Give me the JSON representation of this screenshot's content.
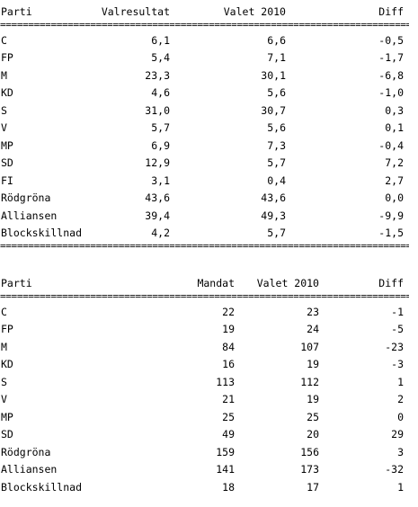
{
  "rule_text": "================================================================================",
  "table1": {
    "headers": [
      "Parti",
      "Valresultat",
      "Valet 2010",
      "Diff"
    ],
    "rows": [
      [
        "C",
        "6,1",
        "6,6",
        "-0,5"
      ],
      [
        "FP",
        "5,4",
        "7,1",
        "-1,7"
      ],
      [
        "M",
        "23,3",
        "30,1",
        "-6,8"
      ],
      [
        "KD",
        "4,6",
        "5,6",
        "-1,0"
      ],
      [
        "S",
        "31,0",
        "30,7",
        "0,3"
      ],
      [
        "V",
        "5,7",
        "5,6",
        "0,1"
      ],
      [
        "MP",
        "6,9",
        "7,3",
        "-0,4"
      ],
      [
        "SD",
        "12,9",
        "5,7",
        "7,2"
      ],
      [
        "FI",
        "3,1",
        "0,4",
        "2,7"
      ],
      [
        "Rödgröna",
        "43,6",
        "43,6",
        "0,0"
      ],
      [
        "Alliansen",
        "39,4",
        "49,3",
        "-9,9"
      ],
      [
        "Blockskillnad",
        "4,2",
        "5,7",
        "-1,5"
      ]
    ]
  },
  "table2": {
    "headers": [
      "Parti",
      "Mandat",
      "Valet 2010",
      "Diff"
    ],
    "rows": [
      [
        "C",
        "22",
        "23",
        "-1"
      ],
      [
        "FP",
        "19",
        "24",
        "-5"
      ],
      [
        "M",
        "84",
        "107",
        "-23"
      ],
      [
        "KD",
        "16",
        "19",
        "-3"
      ],
      [
        "S",
        "113",
        "112",
        "1"
      ],
      [
        "V",
        "21",
        "19",
        "2"
      ],
      [
        "MP",
        "25",
        "25",
        "0"
      ],
      [
        "SD",
        "49",
        "20",
        "29"
      ],
      [
        "Rödgröna",
        "159",
        "156",
        "3"
      ],
      [
        "Alliansen",
        "141",
        "173",
        "-32"
      ],
      [
        "Blockskillnad",
        "18",
        "17",
        "1"
      ]
    ]
  }
}
